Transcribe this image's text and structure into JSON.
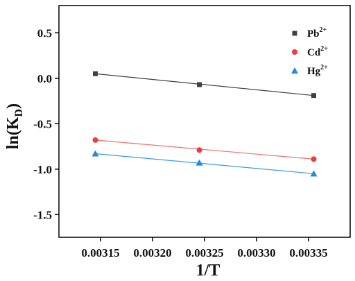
{
  "chart_data": {
    "type": "scatter",
    "xlabel": "1/T",
    "ylabel_main": "ln(K",
    "ylabel_sub": "D",
    "ylabel_close": ")",
    "xlim": [
      0.00311,
      0.00339
    ],
    "ylim": [
      -1.75,
      0.8
    ],
    "xticks": [
      0.00315,
      0.0032,
      0.00325,
      0.0033,
      0.00335
    ],
    "xtick_labels": [
      "0.00315",
      "0.00320",
      "0.00325",
      "0.00330",
      "0.00335"
    ],
    "yticks": [
      0.5,
      0.0,
      -0.5,
      -1.0,
      -1.5
    ],
    "ytick_labels": [
      "0.5",
      "0.0",
      "-0.5",
      "-1.0",
      "-1.5"
    ],
    "legend_position": "top-right",
    "grid": false,
    "series": [
      {
        "name": "Pb",
        "charge": "2+",
        "marker": "square",
        "color": "#404040",
        "line_color": "#404040",
        "x": [
          0.003145,
          0.003245,
          0.003355
        ],
        "y": [
          0.05,
          -0.07,
          -0.19
        ],
        "fit": [
          0.05,
          -0.19
        ]
      },
      {
        "name": "Cd",
        "charge": "2+",
        "marker": "circle",
        "color": "#ef3b3b",
        "line_color": "#f07070",
        "x": [
          0.003145,
          0.003245,
          0.003355
        ],
        "y": [
          -0.68,
          -0.79,
          -0.89
        ],
        "fit": [
          -0.68,
          -0.89
        ]
      },
      {
        "name": "Hg",
        "charge": "2+",
        "marker": "triangle",
        "color": "#1e88e5",
        "line_color": "#3a9be8",
        "x": [
          0.003145,
          0.003245,
          0.003355
        ],
        "y": [
          -0.83,
          -0.93,
          -1.05
        ],
        "fit": [
          -0.83,
          -1.05
        ]
      }
    ]
  }
}
